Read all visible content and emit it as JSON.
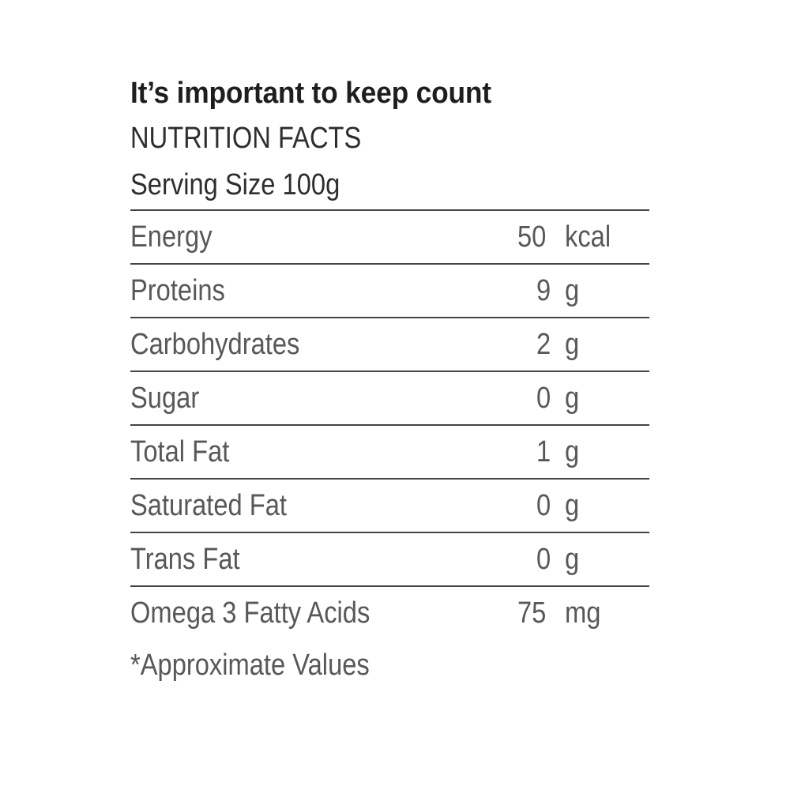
{
  "headline": "It’s important to keep count",
  "label_title": "NUTRITION FACTS",
  "serving_size": "Serving Size 100g",
  "nutrients": [
    {
      "name": "Energy",
      "amount": "50",
      "unit": "kcal"
    },
    {
      "name": "Proteins",
      "amount": "9",
      "unit": "g"
    },
    {
      "name": "Carbohydrates",
      "amount": "2",
      "unit": "g"
    },
    {
      "name": "Sugar",
      "amount": "0",
      "unit": "g"
    },
    {
      "name": "Total Fat",
      "amount": "1",
      "unit": "g"
    },
    {
      "name": "Saturated Fat",
      "amount": "0",
      "unit": "g"
    },
    {
      "name": "Trans Fat",
      "amount": "0",
      "unit": "g"
    },
    {
      "name": "Omega 3 Fatty Acids",
      "amount": "75",
      "unit": "mg"
    }
  ],
  "footnote": "*Approximate Values"
}
